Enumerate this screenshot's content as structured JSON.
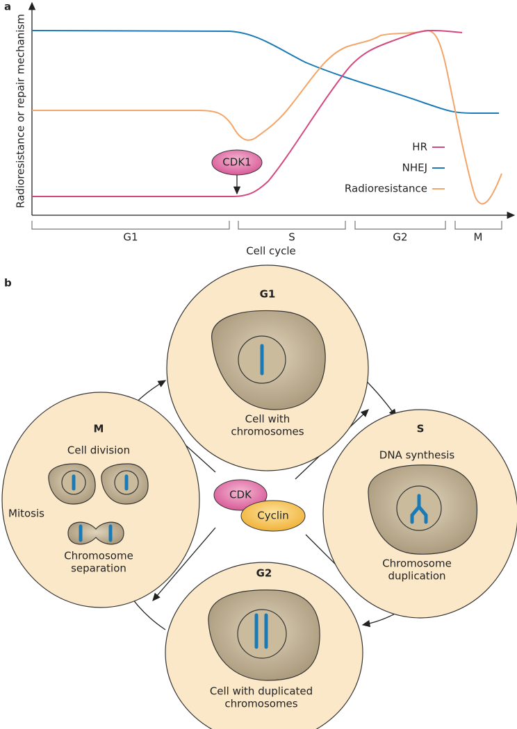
{
  "panel_a": {
    "label": "a",
    "y_axis_label": "Radioresistance or repair mechanism",
    "x_axis_label": "Cell cycle",
    "phases": [
      "G1",
      "S",
      "G2",
      "M"
    ],
    "legend": [
      "HR",
      "NHEJ",
      "Radioresistance"
    ],
    "annotation": "CDK1"
  },
  "panel_b": {
    "label": "b",
    "g1": {
      "title": "G1",
      "caption": [
        "Cell with",
        "chromosomes"
      ]
    },
    "s": {
      "title": "S",
      "heading": "DNA synthesis",
      "caption": [
        "Chromosome",
        "duplication"
      ]
    },
    "g2": {
      "title": "G2",
      "caption": [
        "Cell with duplicated",
        "chromosomes"
      ]
    },
    "m": {
      "title": "M",
      "heading": "Cell division",
      "side": "Mitosis",
      "caption": [
        "Chromosome",
        "separation"
      ]
    },
    "complex": [
      "CDK",
      "Cyclin"
    ]
  }
}
